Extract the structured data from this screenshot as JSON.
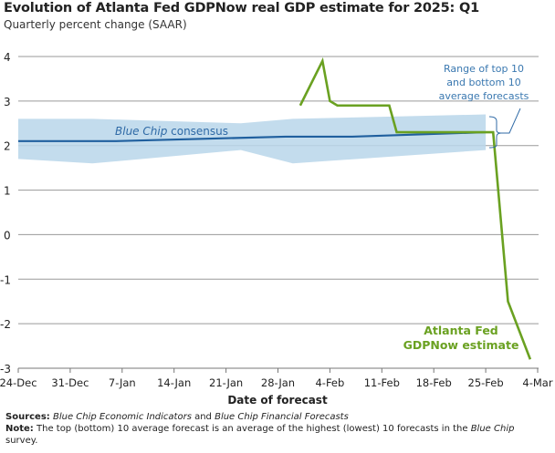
{
  "chart_data": {
    "type": "line",
    "title": "Evolution of Atlanta Fed GDPNow real GDP estimate for 2025: Q1",
    "subtitle": "Quarterly percent change (SAAR)",
    "xlabel": "Date of forecast",
    "ylabel": "",
    "xlim": [
      "2024-12-24",
      "2025-03-04"
    ],
    "ylim": [
      -3,
      4
    ],
    "yticks": [
      "4",
      "3",
      "2",
      "1",
      "0",
      "-1",
      "-2",
      "-3"
    ],
    "xticks": [
      "24-Dec",
      "31-Dec",
      "7-Jan",
      "14-Jan",
      "21-Jan",
      "28-Jan",
      "4-Feb",
      "11-Feb",
      "18-Feb",
      "25-Feb",
      "4-Mar"
    ],
    "grid": "horizontal",
    "colors": {
      "gdpnow": "#6aa121",
      "consensus": "#1f5f9e",
      "band": "#b9d6ea",
      "annotation": "#3a78b0"
    },
    "series": [
      {
        "name": "Atlanta Fed GDPNow estimate",
        "x": [
          "2025-01-31",
          "2025-02-03",
          "2025-02-04",
          "2025-02-05",
          "2025-02-12",
          "2025-02-13",
          "2025-02-26",
          "2025-02-28",
          "2025-03-03"
        ],
        "y": [
          2.9,
          3.9,
          3.0,
          2.9,
          2.9,
          2.3,
          2.3,
          -1.5,
          -2.8
        ]
      },
      {
        "name": "Blue Chip consensus",
        "x": [
          "2024-12-24",
          "2025-01-06",
          "2025-01-29",
          "2025-02-07",
          "2025-02-25"
        ],
        "y": [
          2.1,
          2.1,
          2.2,
          2.2,
          2.3
        ]
      }
    ],
    "band": {
      "name": "Range of top 10 and bottom 10 average forecasts",
      "x": [
        "2024-12-24",
        "2025-01-03",
        "2025-01-23",
        "2025-01-30",
        "2025-02-25"
      ],
      "upper": [
        2.6,
        2.6,
        2.5,
        2.6,
        2.7
      ],
      "lower": [
        1.7,
        1.6,
        1.9,
        1.6,
        1.9
      ]
    },
    "annotations": {
      "consensus_italic": "Blue Chip",
      "consensus_rest": " consensus",
      "gdpnow_line1": "Atlanta Fed",
      "gdpnow_line2": "GDPNow estimate",
      "band_line1": "Range of top 10",
      "band_line2": "and bottom 10",
      "band_line3": "average forecasts"
    }
  },
  "notes": {
    "sources_label": "Sources:",
    "sources_1": "Blue Chip Economic Indicators",
    "sources_2": " and ",
    "sources_3": "Blue Chip Financial Forecasts",
    "note_label": "Note:",
    "note_1": " The top (bottom) 10 average forecast is an average of the highest (lowest) 10 forecasts in the ",
    "note_2": "Blue Chip",
    "note_3": " survey."
  }
}
